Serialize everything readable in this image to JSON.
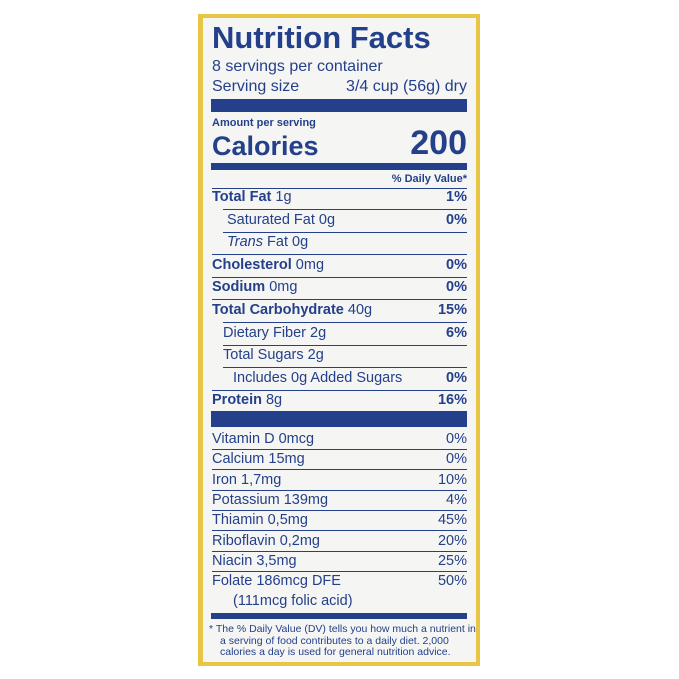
{
  "header": {
    "title": "Nutrition Facts",
    "servings": "8 servings per container",
    "serving_size_label": "Serving size",
    "serving_size_value": "3/4 cup (56g) dry"
  },
  "calories": {
    "label_small": "Amount per serving",
    "label": "Calories",
    "value": "200"
  },
  "dv_header": "% Daily Value*",
  "nutrients": [
    {
      "name": "Total Fat",
      "amount": "1g",
      "dv": "1%"
    },
    {
      "name": "Saturated Fat 0g",
      "dv": "0%"
    },
    {
      "name_italic": "Trans",
      "name": "Fat 0g"
    },
    {
      "name": "Cholesterol",
      "amount": "0mg",
      "dv": "0%"
    },
    {
      "name": "Sodium",
      "amount": "0mg",
      "dv": "0%"
    },
    {
      "name": "Total Carbohydrate",
      "amount": "40g",
      "dv": "15%"
    },
    {
      "name": "Dietary Fiber 2g",
      "dv": "6%"
    },
    {
      "name": "Total Sugars 2g"
    },
    {
      "name": "Includes 0g Added Sugars",
      "dv": "0%"
    },
    {
      "name": "Protein",
      "amount": "8g",
      "dv": "16%"
    }
  ],
  "vitamins": [
    {
      "name": "Vitamin D 0mcg",
      "dv": "0%"
    },
    {
      "name": "Calcium 15mg",
      "dv": "0%"
    },
    {
      "name": "Iron 1,7mg",
      "dv": "10%"
    },
    {
      "name": "Potassium 139mg",
      "dv": "4%"
    },
    {
      "name": "Thiamin 0,5mg",
      "dv": "45%"
    },
    {
      "name": "Riboflavin 0,2mg",
      "dv": "20%"
    },
    {
      "name": "Niacin 3,5mg",
      "dv": "25%"
    },
    {
      "name": "Folate 186mcg DFE",
      "dv": "50%"
    },
    {
      "name": "(111mcg folic acid)"
    }
  ],
  "footnote": [
    "* The % Daily Value (DV) tells you how much a nutrient in",
    "a serving of food contributes to a daily diet. 2,000",
    "calories a day is used for general nutrition advice."
  ]
}
